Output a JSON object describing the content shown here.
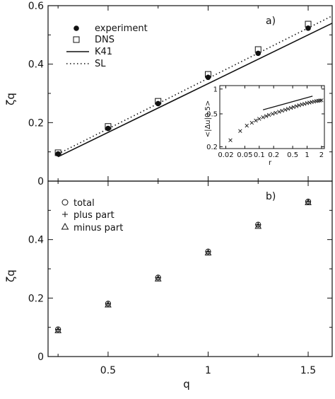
{
  "chart_data": [
    {
      "panel": "a)",
      "type": "scatter",
      "ylabel": "ζq",
      "xlim": [
        0.2,
        1.62
      ],
      "ylim": [
        0,
        0.6
      ],
      "yticks": [
        "0",
        "0.2",
        "0.4",
        "0.6"
      ],
      "legend_position": "top-left",
      "series": [
        {
          "name": "experiment",
          "marker": "filled-circle",
          "x": [
            0.25,
            0.5,
            0.75,
            1.0,
            1.25,
            1.5
          ],
          "y": [
            0.093,
            0.18,
            0.265,
            0.355,
            0.437,
            0.523
          ]
        },
        {
          "name": "DNS",
          "marker": "open-square",
          "x": [
            0.25,
            0.5,
            0.75,
            1.0,
            1.25,
            1.5
          ],
          "y": [
            0.097,
            0.187,
            0.273,
            0.365,
            0.45,
            0.537
          ]
        },
        {
          "name": "K41",
          "style": "solid-line",
          "x": [
            0.25,
            1.62
          ],
          "y": [
            0.0833,
            0.54
          ]
        },
        {
          "name": "SL",
          "style": "dotted-line",
          "x": [
            0.25,
            1.62
          ],
          "y": [
            0.093,
            0.565
          ]
        }
      ],
      "inset": {
        "type": "scatter",
        "xscale": "log",
        "yscale": "log",
        "xlabel": "r",
        "ylabel": "<|Δu|0.5>",
        "xlim": [
          0.015,
          2.3
        ],
        "ylim": [
          0.19,
          1.1
        ],
        "xticks": [
          "0.02",
          "0.05",
          "0.1",
          "0.2",
          "0.5",
          "1",
          "2"
        ],
        "yticks": [
          "0.2",
          "0.5",
          "1"
        ],
        "points": {
          "marker": "x",
          "x": [
            0.025,
            0.04,
            0.055,
            0.07,
            0.085,
            0.1,
            0.12,
            0.14,
            0.16,
            0.19,
            0.22,
            0.26,
            0.3,
            0.35,
            0.4,
            0.46,
            0.52,
            0.6,
            0.68,
            0.78,
            0.88,
            1.0,
            1.12,
            1.25,
            1.4,
            1.55,
            1.7,
            1.85,
            2.0
          ],
          "y": [
            0.24,
            0.31,
            0.36,
            0.39,
            0.415,
            0.435,
            0.455,
            0.47,
            0.485,
            0.5,
            0.515,
            0.53,
            0.545,
            0.56,
            0.575,
            0.59,
            0.605,
            0.62,
            0.635,
            0.65,
            0.66,
            0.675,
            0.685,
            0.695,
            0.705,
            0.715,
            0.72,
            0.725,
            0.73
          ]
        },
        "reference_line": {
          "style": "solid-line",
          "x": [
            0.12,
            1.3
          ],
          "y": [
            0.56,
            0.82
          ]
        }
      }
    },
    {
      "panel": "b)",
      "type": "scatter",
      "xlabel": "q",
      "ylabel": "ζq",
      "xlim": [
        0.2,
        1.62
      ],
      "ylim": [
        0,
        0.6
      ],
      "xticks": [
        "0.5",
        "1",
        "1.5"
      ],
      "yticks": [
        "0",
        "0.2",
        "0.4"
      ],
      "legend_position": "top-left",
      "series": [
        {
          "name": "total",
          "marker": "open-circle",
          "x": [
            0.25,
            0.5,
            0.75,
            1.0,
            1.25,
            1.5
          ],
          "y": [
            0.093,
            0.181,
            0.27,
            0.359,
            0.451,
            0.53
          ]
        },
        {
          "name": "plus part",
          "marker": "plus",
          "x": [
            0.25,
            0.5,
            0.75,
            1.0,
            1.25,
            1.5
          ],
          "y": [
            0.093,
            0.181,
            0.27,
            0.359,
            0.451,
            0.53
          ]
        },
        {
          "name": "minus part",
          "marker": "open-triangle",
          "x": [
            0.25,
            0.5,
            0.75,
            1.0,
            1.25,
            1.5
          ],
          "y": [
            0.089,
            0.177,
            0.266,
            0.355,
            0.446,
            0.527
          ]
        }
      ]
    }
  ]
}
